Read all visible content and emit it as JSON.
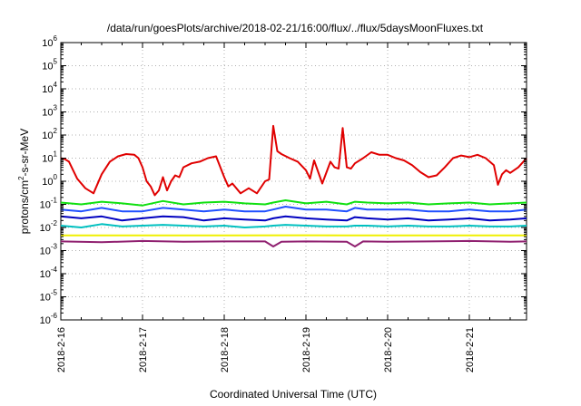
{
  "chart_data": {
    "type": "line",
    "title": "/data/run/goesPlots/archive/2018-02-21/16:00/flux/../flux/5daysMoonFluxes.txt",
    "xlabel": "Coordinated Universal Time (UTC)",
    "ylabel": "protons/cm²-s-sr-MeV",
    "ylabel_base": "protons/cm",
    "ylabel_sup": "2",
    "ylabel_rest": "-s-sr-MeV",
    "x_ticks": [
      "2018-2-16",
      "2018-2-17",
      "2018-2-18",
      "2018-2-19",
      "2018-2-20",
      "2018-2-21"
    ],
    "xlim_days": [
      0,
      5.7
    ],
    "y_scale": "log",
    "ylim": [
      1e-06,
      1000000.0
    ],
    "y_ticks": [
      {
        "base": "10",
        "exp": "-6"
      },
      {
        "base": "10",
        "exp": "-5"
      },
      {
        "base": "10",
        "exp": "-4"
      },
      {
        "base": "10",
        "exp": "-3"
      },
      {
        "base": "10",
        "exp": "-2"
      },
      {
        "base": "10",
        "exp": "-1"
      },
      {
        "base": "10",
        "exp": "0"
      },
      {
        "base": "10",
        "exp": "1"
      },
      {
        "base": "10",
        "exp": "2"
      },
      {
        "base": "10",
        "exp": "3"
      },
      {
        "base": "10",
        "exp": "4"
      },
      {
        "base": "10",
        "exp": "5"
      },
      {
        "base": "10",
        "exp": "6"
      }
    ],
    "grid": true,
    "series": [
      {
        "color": "#e00000",
        "days": [
          0,
          0.05,
          0.1,
          0.15,
          0.2,
          0.3,
          0.4,
          0.5,
          0.6,
          0.7,
          0.8,
          0.9,
          0.95,
          1.0,
          1.05,
          1.1,
          1.15,
          1.2,
          1.25,
          1.3,
          1.35,
          1.4,
          1.45,
          1.5,
          1.6,
          1.7,
          1.8,
          1.9,
          2.0,
          2.05,
          2.1,
          2.2,
          2.3,
          2.4,
          2.5,
          2.55,
          2.6,
          2.65,
          2.7,
          2.8,
          2.9,
          3.0,
          3.05,
          3.1,
          3.2,
          3.3,
          3.35,
          3.4,
          3.45,
          3.5,
          3.55,
          3.6,
          3.7,
          3.8,
          3.9,
          4.0,
          4.1,
          4.2,
          4.3,
          4.4,
          4.5,
          4.6,
          4.7,
          4.8,
          4.9,
          5.0,
          5.1,
          5.2,
          5.3,
          5.35,
          5.4,
          5.45,
          5.5,
          5.6,
          5.7
        ],
        "values": [
          10,
          9,
          7,
          3,
          1.3,
          0.5,
          0.3,
          2,
          7,
          12,
          15,
          14,
          10,
          4,
          1,
          0.6,
          0.25,
          0.4,
          1.5,
          0.4,
          1,
          1.8,
          1.5,
          4,
          6,
          7,
          10,
          12,
          1.5,
          0.6,
          0.8,
          0.3,
          0.5,
          0.3,
          1,
          1.2,
          250,
          20,
          15,
          10,
          7,
          3,
          1.3,
          8,
          0.8,
          7,
          4,
          3.5,
          200,
          4,
          3.5,
          6,
          10,
          18,
          14,
          14,
          10,
          8,
          5,
          2.5,
          1.5,
          1.8,
          4,
          10,
          13,
          11,
          14,
          10,
          5,
          0.7,
          2,
          3,
          2.3,
          4,
          10
        ]
      },
      {
        "color": "#10e010",
        "days": [
          0,
          0.25,
          0.5,
          0.75,
          1.0,
          1.25,
          1.5,
          1.75,
          2.0,
          2.25,
          2.5,
          2.6,
          2.75,
          3.0,
          3.25,
          3.5,
          3.6,
          3.75,
          4.0,
          4.25,
          4.5,
          4.75,
          5.0,
          5.25,
          5.5,
          5.7
        ],
        "values": [
          0.12,
          0.1,
          0.13,
          0.11,
          0.09,
          0.14,
          0.1,
          0.12,
          0.13,
          0.11,
          0.1,
          0.12,
          0.15,
          0.11,
          0.13,
          0.1,
          0.13,
          0.12,
          0.11,
          0.12,
          0.1,
          0.11,
          0.12,
          0.1,
          0.11,
          0.12
        ]
      },
      {
        "color": "#2050ff",
        "days": [
          0,
          0.25,
          0.5,
          0.75,
          1.0,
          1.25,
          1.5,
          1.75,
          2.0,
          2.25,
          2.5,
          2.6,
          2.75,
          3.0,
          3.25,
          3.5,
          3.6,
          3.75,
          4.0,
          4.25,
          4.5,
          4.75,
          5.0,
          5.25,
          5.5,
          5.7
        ],
        "values": [
          0.06,
          0.05,
          0.07,
          0.05,
          0.05,
          0.07,
          0.06,
          0.05,
          0.06,
          0.05,
          0.05,
          0.06,
          0.08,
          0.06,
          0.06,
          0.05,
          0.07,
          0.06,
          0.06,
          0.06,
          0.05,
          0.05,
          0.06,
          0.05,
          0.05,
          0.06
        ]
      },
      {
        "color": "#0000c0",
        "days": [
          0,
          0.25,
          0.5,
          0.75,
          1.0,
          1.25,
          1.5,
          1.75,
          2.0,
          2.25,
          2.5,
          2.6,
          2.75,
          3.0,
          3.25,
          3.5,
          3.6,
          3.75,
          4.0,
          4.25,
          4.5,
          4.75,
          5.0,
          5.25,
          5.5,
          5.7
        ],
        "values": [
          0.03,
          0.025,
          0.03,
          0.02,
          0.025,
          0.03,
          0.028,
          0.02,
          0.025,
          0.022,
          0.02,
          0.025,
          0.03,
          0.025,
          0.022,
          0.02,
          0.028,
          0.025,
          0.022,
          0.025,
          0.02,
          0.022,
          0.025,
          0.02,
          0.022,
          0.025
        ]
      },
      {
        "color": "#00c0c0",
        "days": [
          0,
          0.25,
          0.5,
          0.75,
          1.0,
          1.25,
          1.5,
          1.75,
          2.0,
          2.25,
          2.5,
          2.6,
          2.75,
          3.0,
          3.25,
          3.5,
          3.6,
          3.75,
          4.0,
          4.25,
          4.5,
          4.75,
          5.0,
          5.25,
          5.5,
          5.7
        ],
        "values": [
          0.012,
          0.01,
          0.014,
          0.011,
          0.012,
          0.013,
          0.012,
          0.011,
          0.012,
          0.01,
          0.011,
          0.012,
          0.013,
          0.012,
          0.011,
          0.011,
          0.012,
          0.012,
          0.011,
          0.012,
          0.011,
          0.011,
          0.012,
          0.011,
          0.011,
          0.012
        ]
      },
      {
        "color": "#f0f000",
        "days": [
          0,
          1,
          2,
          3,
          4,
          5,
          5.7
        ],
        "values": [
          0.0045,
          0.0045,
          0.0045,
          0.0046,
          0.0045,
          0.0045,
          0.0045
        ]
      },
      {
        "color": "#902070",
        "days": [
          0,
          0.5,
          1.0,
          1.5,
          2.0,
          2.5,
          2.6,
          2.7,
          3.0,
          3.5,
          3.6,
          3.7,
          4.0,
          4.5,
          5.0,
          5.5,
          5.7
        ],
        "values": [
          0.0025,
          0.0023,
          0.0026,
          0.0024,
          0.0025,
          0.0025,
          0.0015,
          0.0024,
          0.0025,
          0.0024,
          0.0015,
          0.0025,
          0.0024,
          0.0025,
          0.0026,
          0.0024,
          0.0025
        ]
      }
    ]
  }
}
